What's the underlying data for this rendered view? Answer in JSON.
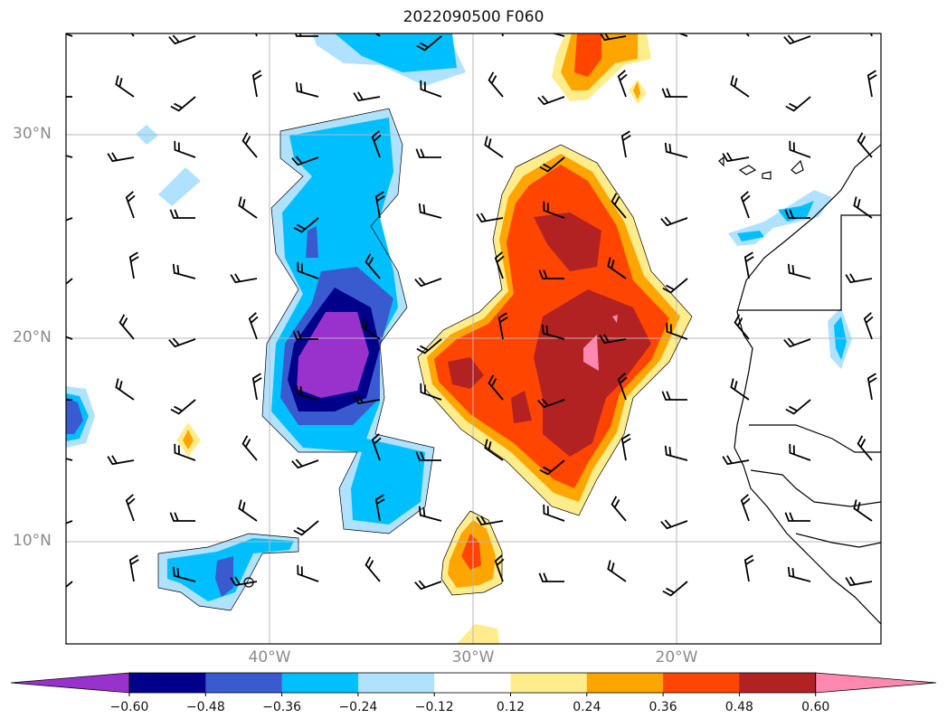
{
  "title": "2022090500 F060",
  "lat_labels": [
    "30°N",
    "20°N",
    "10°N"
  ],
  "lon_labels": [
    "40°W",
    "30°W",
    "20°W"
  ],
  "colorbar": {
    "levels": [
      "−0.60",
      "−0.48",
      "−0.36",
      "−0.24",
      "−0.12",
      "0.12",
      "0.24",
      "0.36",
      "0.48",
      "0.60"
    ],
    "colors": [
      "#9932CC",
      "#00008B",
      "#3A5BCF",
      "#00BFFF",
      "#B0E2FF",
      "#FFFFFF",
      "#FFEC8B",
      "#FFA500",
      "#FF4500",
      "#B22222",
      "#FF88B0"
    ]
  },
  "map_extent": {
    "lon_min": -50,
    "lon_max": -10,
    "lat_min": 5,
    "lat_max": 35
  }
}
